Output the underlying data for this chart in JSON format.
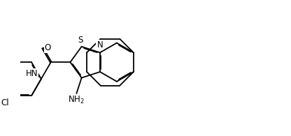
{
  "bg_color": "#ffffff",
  "line_color": "#000000",
  "lw": 1.3,
  "doff": 0.048,
  "figsize": [
    4.16,
    1.95
  ],
  "dpi": 100,
  "BL": 1.0,
  "xlim": [
    -1.5,
    11.5
  ],
  "ylim": [
    -1.0,
    6.0
  ]
}
